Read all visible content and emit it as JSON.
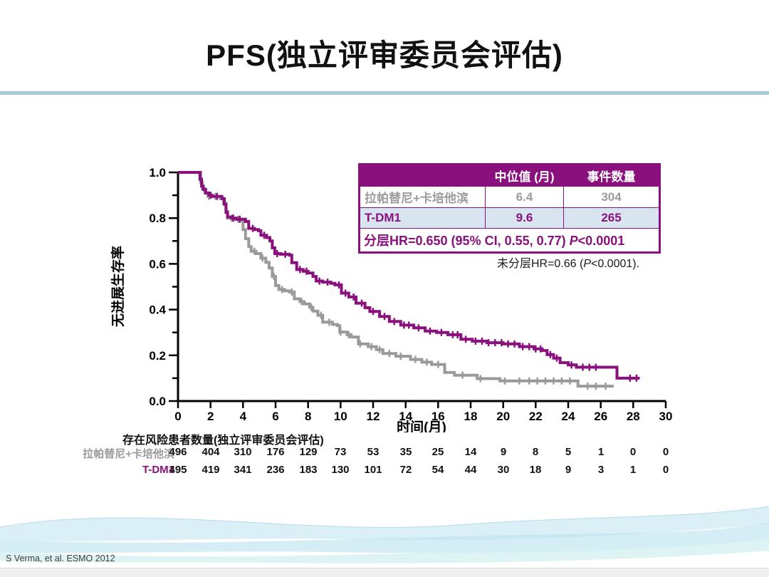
{
  "slide": {
    "title": "PFS(独立评审委员会评估)",
    "credit": "S Verma, et al. ESMO 2012"
  },
  "colors": {
    "accent_purple": "#8a107d",
    "series_gray": "#9a9a9a",
    "row_light_blue": "#d8e5f1",
    "separator_blue": "#a6cbd8"
  },
  "stats_table": {
    "headers": [
      "",
      "中位值 (月)",
      "事件数量"
    ],
    "rows": [
      {
        "label": "拉帕替尼+卡培他滨",
        "median": "6.4",
        "events": "304"
      },
      {
        "label": "T-DM1",
        "median": "9.6",
        "events": "265"
      }
    ],
    "footer": {
      "prefix": "分层HR=0.650 (95% CI, 0.55, 0.77) ",
      "italic": "P",
      "suffix": "<0.0001"
    }
  },
  "annotation": {
    "prefix": "未分层HR=0.66 (",
    "italic": "P",
    "suffix": "<0.0001)."
  },
  "chart_data": {
    "type": "line",
    "subtype": "kaplan-meier-step",
    "xlabel": "时间(月)",
    "ylabel": "无进展生存率",
    "xlim": [
      0,
      30
    ],
    "ylim": [
      0.0,
      1.0
    ],
    "xticks": [
      0,
      2,
      4,
      6,
      8,
      10,
      12,
      14,
      16,
      18,
      20,
      22,
      24,
      26,
      28,
      30
    ],
    "yticks": [
      0.0,
      0.2,
      0.4,
      0.6,
      0.8,
      1.0
    ],
    "y_minor_step": 0.1,
    "grid": false,
    "legend": "none (identified in stats table)",
    "series": [
      {
        "id": "lapatinib-capecitabine",
        "name": "拉帕替尼+卡培他滨",
        "color": "#9a9a9a",
        "median_months": 6.4,
        "events": 304,
        "steps": [
          [
            0,
            1.0
          ],
          [
            1.3,
            1.0
          ],
          [
            1.4,
            0.955
          ],
          [
            1.5,
            0.93
          ],
          [
            1.65,
            0.91
          ],
          [
            1.85,
            0.895
          ],
          [
            2.6,
            0.885
          ],
          [
            2.8,
            0.865
          ],
          [
            2.95,
            0.83
          ],
          [
            3.05,
            0.8
          ],
          [
            3.5,
            0.795
          ],
          [
            3.85,
            0.79
          ],
          [
            4.0,
            0.75
          ],
          [
            4.15,
            0.71
          ],
          [
            4.35,
            0.675
          ],
          [
            4.5,
            0.655
          ],
          [
            4.8,
            0.645
          ],
          [
            5.1,
            0.625
          ],
          [
            5.4,
            0.607
          ],
          [
            5.6,
            0.582
          ],
          [
            5.8,
            0.545
          ],
          [
            6.0,
            0.505
          ],
          [
            6.2,
            0.488
          ],
          [
            6.55,
            0.482
          ],
          [
            6.85,
            0.477
          ],
          [
            7.15,
            0.447
          ],
          [
            7.5,
            0.435
          ],
          [
            7.75,
            0.425
          ],
          [
            8.1,
            0.41
          ],
          [
            8.3,
            0.393
          ],
          [
            8.6,
            0.375
          ],
          [
            8.9,
            0.345
          ],
          [
            9.5,
            0.335
          ],
          [
            9.8,
            0.33
          ],
          [
            9.95,
            0.302
          ],
          [
            10.4,
            0.29
          ],
          [
            10.65,
            0.28
          ],
          [
            11.1,
            0.25
          ],
          [
            11.7,
            0.238
          ],
          [
            12.2,
            0.225
          ],
          [
            12.6,
            0.208
          ],
          [
            13.4,
            0.196
          ],
          [
            14.3,
            0.182
          ],
          [
            15.0,
            0.17
          ],
          [
            15.6,
            0.16
          ],
          [
            16.4,
            0.125
          ],
          [
            17.0,
            0.113
          ],
          [
            18.4,
            0.098
          ],
          [
            19.8,
            0.088
          ],
          [
            24.6,
            0.065
          ],
          [
            26.8,
            0.065
          ]
        ],
        "censor_times": [
          1.9,
          2.3,
          3.3,
          3.7,
          4.7,
          5.2,
          5.9,
          6.4,
          7.0,
          7.6,
          8.2,
          8.8,
          9.3,
          10.0,
          10.5,
          11.2,
          11.9,
          12.4,
          13.0,
          13.7,
          14.6,
          15.3,
          16.0,
          17.5,
          18.6,
          20.1,
          21.0,
          21.6,
          22.1,
          22.6,
          23.1,
          23.6,
          24.1,
          25.2,
          25.7,
          26.3
        ]
      },
      {
        "id": "t-dm1",
        "name": "T-DM1",
        "color": "#8a107d",
        "median_months": 9.6,
        "events": 265,
        "steps": [
          [
            0,
            1.0
          ],
          [
            1.3,
            1.0
          ],
          [
            1.35,
            0.97
          ],
          [
            1.45,
            0.94
          ],
          [
            1.55,
            0.925
          ],
          [
            1.7,
            0.91
          ],
          [
            1.9,
            0.9
          ],
          [
            2.1,
            0.895
          ],
          [
            2.7,
            0.885
          ],
          [
            2.85,
            0.86
          ],
          [
            2.95,
            0.825
          ],
          [
            3.05,
            0.805
          ],
          [
            3.3,
            0.8
          ],
          [
            3.6,
            0.795
          ],
          [
            4.15,
            0.785
          ],
          [
            4.35,
            0.755
          ],
          [
            4.7,
            0.75
          ],
          [
            4.95,
            0.745
          ],
          [
            5.1,
            0.725
          ],
          [
            5.45,
            0.715
          ],
          [
            5.65,
            0.7
          ],
          [
            5.8,
            0.67
          ],
          [
            5.95,
            0.645
          ],
          [
            6.3,
            0.642
          ],
          [
            6.85,
            0.638
          ],
          [
            7.0,
            0.605
          ],
          [
            7.3,
            0.575
          ],
          [
            7.7,
            0.568
          ],
          [
            8.0,
            0.56
          ],
          [
            8.3,
            0.545
          ],
          [
            8.5,
            0.525
          ],
          [
            8.9,
            0.52
          ],
          [
            9.4,
            0.515
          ],
          [
            9.65,
            0.508
          ],
          [
            10.05,
            0.472
          ],
          [
            10.5,
            0.455
          ],
          [
            10.95,
            0.428
          ],
          [
            11.5,
            0.408
          ],
          [
            11.8,
            0.392
          ],
          [
            12.4,
            0.37
          ],
          [
            13.0,
            0.348
          ],
          [
            13.7,
            0.332
          ],
          [
            14.5,
            0.32
          ],
          [
            15.2,
            0.306
          ],
          [
            15.9,
            0.3
          ],
          [
            16.6,
            0.29
          ],
          [
            17.4,
            0.27
          ],
          [
            18.1,
            0.262
          ],
          [
            19.0,
            0.255
          ],
          [
            20.0,
            0.25
          ],
          [
            21.0,
            0.238
          ],
          [
            21.9,
            0.228
          ],
          [
            22.4,
            0.221
          ],
          [
            22.7,
            0.203
          ],
          [
            23.1,
            0.188
          ],
          [
            23.5,
            0.168
          ],
          [
            24.0,
            0.158
          ],
          [
            24.5,
            0.148
          ],
          [
            27.0,
            0.1
          ],
          [
            28.4,
            0.1
          ]
        ],
        "censor_times": [
          2.0,
          2.4,
          3.4,
          3.8,
          4.6,
          5.3,
          6.1,
          6.6,
          7.5,
          7.9,
          8.7,
          9.2,
          9.9,
          10.3,
          10.8,
          11.3,
          12.0,
          12.7,
          13.3,
          13.9,
          14.2,
          14.8,
          15.5,
          16.2,
          16.9,
          17.2,
          17.7,
          18.3,
          18.7,
          19.1,
          19.5,
          19.9,
          20.3,
          20.7,
          21.2,
          21.6,
          22.0,
          22.3,
          22.9,
          23.3,
          24.2,
          24.9,
          25.3,
          25.7,
          27.8,
          28.2
        ]
      }
    ]
  },
  "at_risk": {
    "title": "存在风险患者数量(独立评审委员会评估)",
    "times": [
      0,
      2,
      4,
      6,
      8,
      10,
      12,
      14,
      16,
      18,
      20,
      22,
      24,
      26,
      28,
      30
    ],
    "rows": [
      {
        "label": "拉帕替尼+卡培他滨",
        "color": "#9a9a9a",
        "counts": [
          496,
          404,
          310,
          176,
          129,
          73,
          53,
          35,
          25,
          14,
          9,
          8,
          5,
          1,
          0,
          0
        ]
      },
      {
        "label": "T-DM1",
        "color": "#8a107d",
        "counts": [
          495,
          419,
          341,
          236,
          183,
          130,
          101,
          72,
          54,
          44,
          30,
          18,
          9,
          3,
          1,
          0
        ]
      }
    ]
  }
}
